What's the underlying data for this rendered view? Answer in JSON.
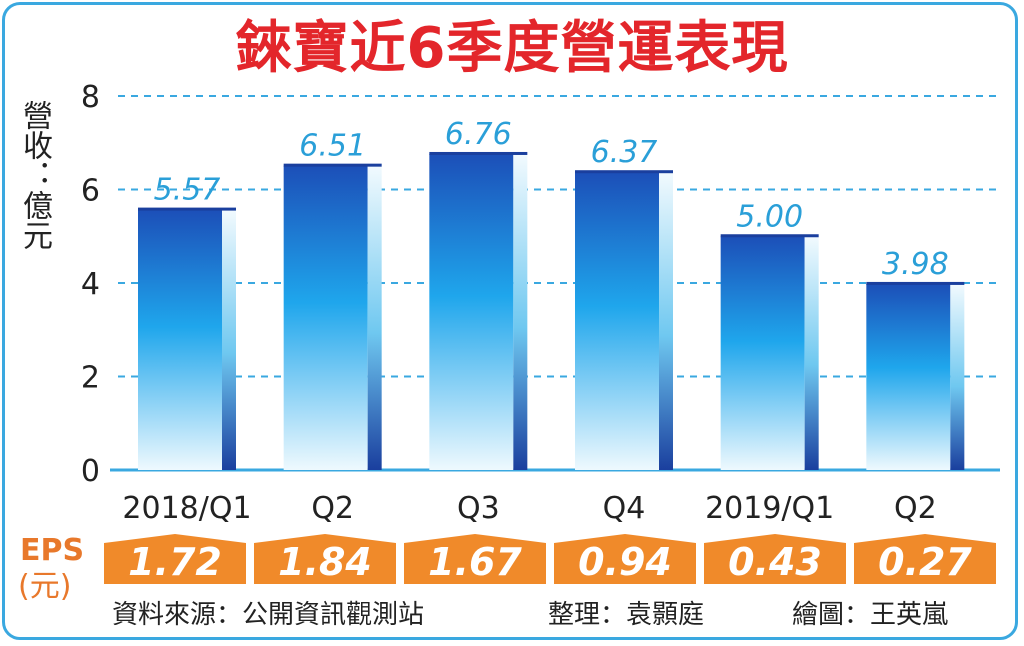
{
  "title": "錸寶近6季度營運表現",
  "ylabel": "營收：億元",
  "chart_data": {
    "type": "bar",
    "title": "錸寶近6季度營運表現",
    "ylabel": "營收：億元",
    "xlabel": "",
    "categories": [
      "2018/Q1",
      "Q2",
      "Q3",
      "Q4",
      "2019/Q1",
      "Q2"
    ],
    "values": [
      5.57,
      6.51,
      6.76,
      6.37,
      5.0,
      3.98
    ],
    "value_labels": [
      "5.57",
      "6.51",
      "6.76",
      "6.37",
      "5.00",
      "3.98"
    ],
    "ylim": [
      0,
      8
    ],
    "yticks": [
      "0",
      "2",
      "4",
      "6",
      "8"
    ],
    "grid": "dashed horizontal",
    "bar_color_top": "#1c4fb8",
    "bar_color_bottom": "#e6f6fd",
    "gridline_color": "#3aa8e0",
    "value_label_color": "#2a9fd8"
  },
  "eps": {
    "label": "EPS",
    "unit": "(元)",
    "values": [
      "1.72",
      "1.84",
      "1.67",
      "0.94",
      "0.43",
      "0.27"
    ],
    "color": "#f08a2a"
  },
  "footer": {
    "source": "資料來源：公開資訊觀測站",
    "editor": "整理：袁顥庭",
    "artist": "繪圖：王英嵐"
  },
  "colors": {
    "title": "#e3262b",
    "frame": "#3aa8e0"
  }
}
